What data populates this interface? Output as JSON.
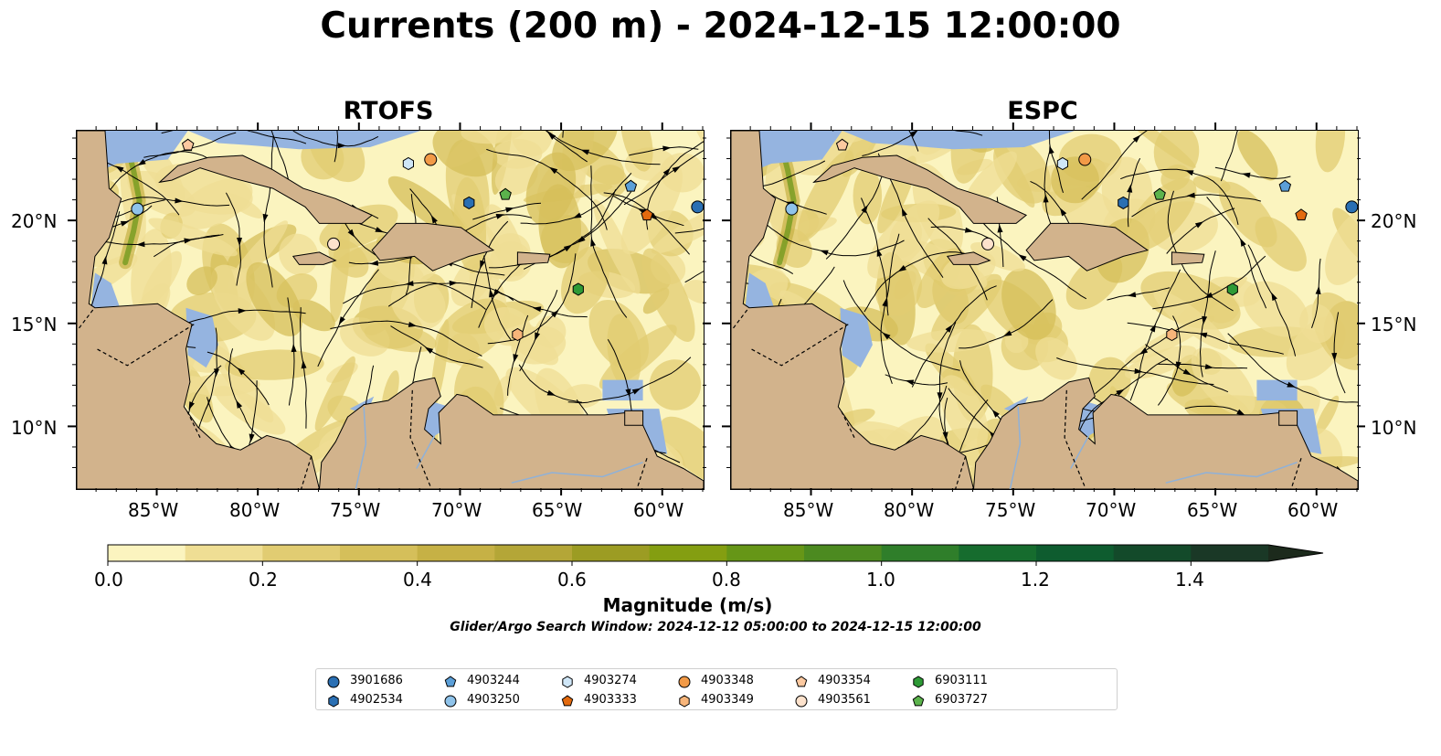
{
  "title": "Currents (200 m) - 2024-12-15 12:00:00",
  "panels": [
    {
      "id": "rtofs",
      "title": "RTOFS"
    },
    {
      "id": "espc",
      "title": "ESPC"
    }
  ],
  "axes": {
    "lon_labels": [
      "85°W",
      "80°W",
      "75°W",
      "70°W",
      "65°W",
      "60°W"
    ],
    "lat_labels": [
      "20°N",
      "15°N",
      "10°N"
    ]
  },
  "colorbar": {
    "label": "Magnitude (m/s)",
    "range": [
      0.0,
      1.5
    ],
    "tick_labels": [
      "0.0",
      "0.2",
      "0.4",
      "0.6",
      "0.8",
      "1.0",
      "1.2",
      "1.4"
    ],
    "colors": [
      "#fbf4bf",
      "#efde94",
      "#e1cc72",
      "#d5bf5a",
      "#c6b145",
      "#b4a637",
      "#9c9c23",
      "#849e11",
      "#669617",
      "#4c8a20",
      "#2f7e2a",
      "#166c2e",
      "#0e5c2f",
      "#134a2a",
      "#1a3826",
      "#1c2a1c"
    ]
  },
  "search_window": "Glider/Argo Search Window: 2024-12-12 05:00:00 to 2024-12-15 12:00:00",
  "colors": {
    "land": "#d2b38c",
    "water": "#95b4e0"
  },
  "legend": [
    {
      "id": "3901686",
      "shape": "circle",
      "color": "#2a6fb3"
    },
    {
      "id": "4902534",
      "shape": "hexagon",
      "color": "#2a6fb3"
    },
    {
      "id": "4903244",
      "shape": "pentagon",
      "color": "#5b9fd8"
    },
    {
      "id": "4903250",
      "shape": "circle",
      "color": "#8fc3ea"
    },
    {
      "id": "4903274",
      "shape": "hexagon",
      "color": "#cfe6f7"
    },
    {
      "id": "4903333",
      "shape": "pentagon",
      "color": "#e36a0e"
    },
    {
      "id": "4903348",
      "shape": "circle",
      "color": "#f29a47"
    },
    {
      "id": "4903349",
      "shape": "hexagon",
      "color": "#f7b57a"
    },
    {
      "id": "4903354",
      "shape": "pentagon",
      "color": "#fcc9a0"
    },
    {
      "id": "4903561",
      "shape": "circle",
      "color": "#fde2cc"
    },
    {
      "id": "6903111",
      "shape": "hexagon",
      "color": "#2e9a36"
    },
    {
      "id": "6903727",
      "shape": "pentagon",
      "color": "#5bb34c"
    }
  ],
  "floats": {
    "rtofs": [
      {
        "id": "4903354",
        "lon": -83.5,
        "lat": 23.7
      },
      {
        "id": "4903250",
        "lon": -86.0,
        "lat": 20.6
      },
      {
        "id": "4903274",
        "lon": -72.6,
        "lat": 22.8
      },
      {
        "id": "4903348",
        "lon": -71.5,
        "lat": 23.0
      },
      {
        "id": "4902534",
        "lon": -69.6,
        "lat": 20.9
      },
      {
        "id": "6903727",
        "lon": -67.8,
        "lat": 21.3
      },
      {
        "id": "4903244",
        "lon": -61.6,
        "lat": 21.7
      },
      {
        "id": "4903333",
        "lon": -60.8,
        "lat": 20.3
      },
      {
        "id": "3901686",
        "lon": -58.3,
        "lat": 20.7
      },
      {
        "id": "4903561",
        "lon": -76.3,
        "lat": 18.9
      },
      {
        "id": "6903111",
        "lon": -64.2,
        "lat": 16.7
      },
      {
        "id": "4903349",
        "lon": -67.2,
        "lat": 14.5
      }
    ],
    "espc": [
      {
        "id": "4903354",
        "lon": -83.5,
        "lat": 23.7
      },
      {
        "id": "4903250",
        "lon": -86.0,
        "lat": 20.6
      },
      {
        "id": "4903274",
        "lon": -72.6,
        "lat": 22.8
      },
      {
        "id": "4903348",
        "lon": -71.5,
        "lat": 23.0
      },
      {
        "id": "4902534",
        "lon": -69.6,
        "lat": 20.9
      },
      {
        "id": "6903727",
        "lon": -67.8,
        "lat": 21.3
      },
      {
        "id": "4903244",
        "lon": -61.6,
        "lat": 21.7
      },
      {
        "id": "4903333",
        "lon": -60.8,
        "lat": 20.3
      },
      {
        "id": "3901686",
        "lon": -58.3,
        "lat": 20.7
      },
      {
        "id": "4903561",
        "lon": -76.3,
        "lat": 18.9
      },
      {
        "id": "6903111",
        "lon": -64.2,
        "lat": 16.7
      },
      {
        "id": "4903349",
        "lon": -67.2,
        "lat": 14.5
      }
    ]
  }
}
